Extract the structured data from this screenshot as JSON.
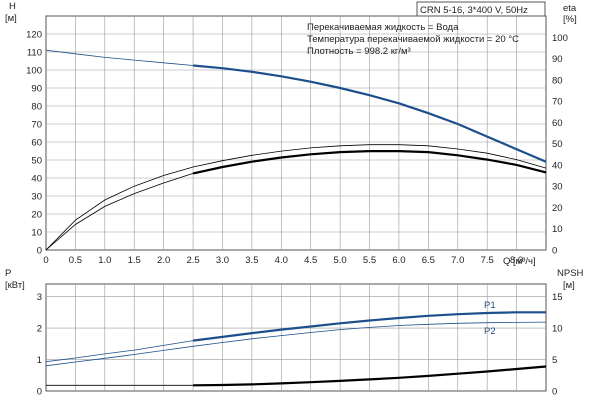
{
  "header": {
    "model": "CRN 5-16, 3*400 V, 50Hz"
  },
  "top_chart": {
    "left_axis_title": "H",
    "left_axis_unit": "[м]",
    "right_axis_title": "eta",
    "right_axis_unit": "[%]",
    "info_lines": [
      "Перекачиваемая жидкость = Вода",
      "Температура перекачиваемой жидкости = 20 °C",
      "Плотность = 998.2 кг/м³"
    ],
    "x_axis_label": "Q [м³/ч]"
  },
  "bottom_chart": {
    "left_axis_title": "P",
    "left_axis_unit": "[кВт]",
    "right_axis_title": "NPSH",
    "right_axis_unit": "[м]",
    "label_p1": "P1",
    "label_p2": "P2"
  },
  "colors": {
    "blue": "#1d4f8c",
    "black": "#000000",
    "grid": "#9a9a9a"
  },
  "chart_data": [
    {
      "type": "line",
      "title": "",
      "xlabel": "Q [м³/ч]",
      "ylabel": "H [м]",
      "y2label": "eta [%]",
      "xlim": [
        0,
        8.5
      ],
      "ylim": [
        0,
        130
      ],
      "y2lim": [
        0,
        110
      ],
      "x_ticks": [
        "0",
        "0.5",
        "1.0",
        "1.5",
        "2.0",
        "2.5",
        "3.0",
        "3.5",
        "4.0",
        "4.5",
        "5.0",
        "5.5",
        "6.0",
        "6.5",
        "7.0",
        "7.5",
        "8.0"
      ],
      "y_ticks": [
        "0",
        "10",
        "20",
        "30",
        "40",
        "50",
        "60",
        "70",
        "80",
        "90",
        "100",
        "110",
        "120"
      ],
      "y2_ticks": [
        "0",
        "10",
        "20",
        "30",
        "40",
        "50",
        "60",
        "70",
        "80",
        "90",
        "100"
      ],
      "grid": true,
      "series": [
        {
          "axis": "left",
          "color": "#1d4f8c",
          "style": "thin-then-bold",
          "bold_from": 2.5,
          "x": [
            0,
            0.5,
            1.0,
            1.5,
            2.0,
            2.5,
            3.0,
            3.5,
            4.0,
            4.5,
            5.0,
            5.5,
            6.0,
            6.5,
            7.0,
            7.5,
            8.0,
            8.5
          ],
          "y": [
            111,
            109,
            107,
            105.5,
            104,
            102.5,
            101,
            99,
            96.5,
            93.5,
            90,
            86,
            81.5,
            76,
            70,
            63,
            56,
            49
          ]
        },
        {
          "axis": "right",
          "color": "#000000",
          "style": "thin",
          "x": [
            0,
            0.5,
            1.0,
            1.5,
            2.0,
            2.5,
            3.0,
            3.5,
            4.0,
            4.5,
            5.0,
            5.5,
            6.0,
            6.5,
            7.0,
            7.5,
            8.0,
            8.5
          ],
          "y": [
            0,
            14,
            23.5,
            30,
            35,
            39,
            42,
            44.5,
            46.5,
            48,
            49,
            49.5,
            49.5,
            49,
            47.5,
            45.5,
            42.5,
            38.5
          ]
        },
        {
          "axis": "right",
          "color": "#000000",
          "style": "thin-then-bold",
          "bold_from": 2.5,
          "x": [
            0,
            0.5,
            1.0,
            1.5,
            2.0,
            2.5,
            3.0,
            3.5,
            4.0,
            4.5,
            5.0,
            5.5,
            6.0,
            6.5,
            7.0,
            7.5,
            8.0,
            8.5
          ],
          "y": [
            0,
            12,
            20.5,
            26.5,
            31.5,
            36,
            39,
            41.5,
            43.5,
            45,
            46,
            46.5,
            46.5,
            46,
            44.5,
            42.5,
            40,
            36.5
          ]
        }
      ]
    },
    {
      "type": "line",
      "title": "",
      "xlabel": "",
      "ylabel": "P [кВт]",
      "y2label": "NPSH [м]",
      "xlim": [
        0,
        8.5
      ],
      "ylim": [
        0,
        3.4
      ],
      "y2lim": [
        0,
        17
      ],
      "y_ticks": [
        "0",
        "1",
        "2",
        "3"
      ],
      "y2_ticks": [
        "0",
        "5",
        "10",
        "15"
      ],
      "grid": true,
      "series": [
        {
          "name": "P1",
          "axis": "left",
          "color": "#1d4f8c",
          "style": "thin-then-bold",
          "bold_from": 2.5,
          "x": [
            0,
            0.5,
            1.0,
            1.5,
            2.0,
            2.5,
            3.0,
            3.5,
            4.0,
            4.5,
            5.0,
            5.5,
            6.0,
            6.5,
            7.0,
            7.5,
            8.0,
            8.5
          ],
          "y": [
            0.93,
            1.05,
            1.18,
            1.3,
            1.45,
            1.6,
            1.72,
            1.84,
            1.95,
            2.05,
            2.15,
            2.24,
            2.32,
            2.39,
            2.44,
            2.48,
            2.5,
            2.5
          ]
        },
        {
          "name": "P2",
          "axis": "left",
          "color": "#1d4f8c",
          "style": "thin",
          "x": [
            0,
            0.5,
            1.0,
            1.5,
            2.0,
            2.5,
            3.0,
            3.5,
            4.0,
            4.5,
            5.0,
            5.5,
            6.0,
            6.5,
            7.0,
            7.5,
            8.0,
            8.5
          ],
          "y": [
            0.8,
            0.92,
            1.04,
            1.16,
            1.29,
            1.42,
            1.54,
            1.66,
            1.76,
            1.86,
            1.95,
            2.02,
            2.08,
            2.12,
            2.15,
            2.17,
            2.18,
            2.19
          ]
        },
        {
          "axis": "right",
          "color": "#000000",
          "style": "thin-then-bold",
          "bold_from": 2.5,
          "x": [
            0,
            0.5,
            1.0,
            1.5,
            2.0,
            2.5,
            3.0,
            3.5,
            4.0,
            4.5,
            5.0,
            5.5,
            6.0,
            6.5,
            7.0,
            7.5,
            8.0,
            8.5
          ],
          "y": [
            0.9,
            0.9,
            0.9,
            0.9,
            0.9,
            0.9,
            0.95,
            1.05,
            1.2,
            1.4,
            1.6,
            1.85,
            2.1,
            2.4,
            2.75,
            3.1,
            3.5,
            3.9
          ]
        }
      ]
    }
  ]
}
